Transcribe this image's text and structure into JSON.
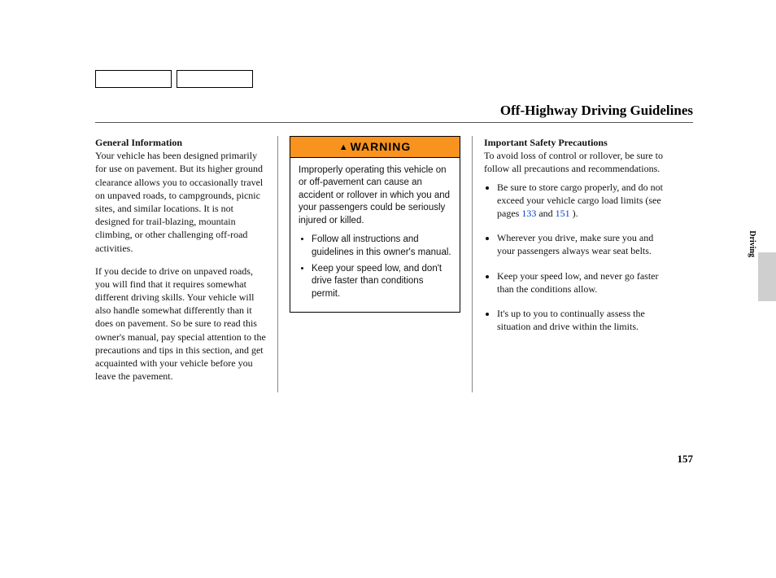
{
  "page_title": "Off-Highway Driving Guidelines",
  "page_number": "157",
  "side_tab": "Driving",
  "col1": {
    "heading": "General Information",
    "para1": "Your vehicle has been designed primarily for use on pavement. But its higher ground clearance allows you to occasionally travel on unpaved roads, to campgrounds, picnic sites, and similar locations. It is not designed for trail-blazing, mountain climbing, or other challenging off-road activities.",
    "para2": "If you decide to drive on unpaved roads, you will find that it requires somewhat different driving skills. Your vehicle will also handle somewhat differently than it does on pavement. So be sure to read this owner's manual, pay special attention to the precautions and tips in this section, and get acquainted with your vehicle before you leave the pavement."
  },
  "warning": {
    "label": "WARNING",
    "intro": "Improperly operating this vehicle on or off-pavement can cause an accident or rollover in which you and your passengers could be seriously injured or killed.",
    "bullets": [
      "Follow all instructions and guidelines in this owner's manual.",
      "Keep your speed low, and don't drive faster than conditions permit."
    ]
  },
  "col3": {
    "heading": "Important Safety Precautions",
    "intro": "To avoid loss of control or rollover, be sure to follow all precautions and recommendations.",
    "bullet1_pre": "Be sure to store cargo properly, and do not exceed your vehicle cargo load limits (see pages ",
    "ref1": "133",
    "bullet1_mid": " and ",
    "ref2": "151",
    "bullet1_post": " ).",
    "bullet2": "Wherever you drive, make sure you and your passengers always wear seat belts.",
    "bullet3": "Keep your speed low, and never go faster than the conditions allow.",
    "bullet4": "It's up to you to continually assess the situation and drive within the limits."
  }
}
